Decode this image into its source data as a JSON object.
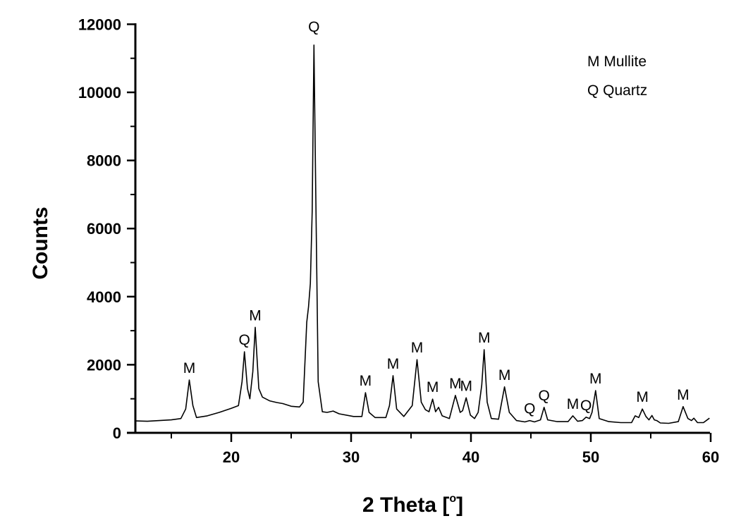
{
  "chart_data": {
    "type": "line",
    "title": "",
    "xlabel": "2 Theta [°]",
    "ylabel": "Counts",
    "xlim": [
      12,
      60
    ],
    "ylim": [
      0,
      12000
    ],
    "grid": false,
    "legend_position": "top-right",
    "xticks": [
      20,
      30,
      40,
      50,
      60
    ],
    "xtick_labels": [
      "20",
      "30",
      "40",
      "50",
      "60"
    ],
    "x_minor_ticks": [
      15,
      25,
      35,
      45,
      55
    ],
    "yticks": [
      0,
      2000,
      4000,
      6000,
      8000,
      10000,
      12000
    ],
    "ytick_labels": [
      "0",
      "2000",
      "4000",
      "6000",
      "8000",
      "10000",
      "12000"
    ],
    "y_minor_ticks": [
      1000,
      3000,
      5000,
      7000,
      9000,
      11000
    ],
    "legend": [
      {
        "symbol": "M",
        "name": "Mullite"
      },
      {
        "symbol": "Q",
        "name": "Quartz"
      }
    ],
    "series": [
      {
        "name": "XRD pattern",
        "x": [
          12.0,
          13.0,
          14.0,
          15.0,
          15.8,
          16.2,
          16.5,
          16.8,
          17.1,
          18.0,
          19.0,
          20.0,
          20.6,
          20.9,
          21.1,
          21.35,
          21.55,
          21.8,
          22.0,
          22.3,
          22.6,
          23.2,
          23.8,
          24.3,
          25.0,
          25.7,
          26.0,
          26.3,
          26.45,
          26.6,
          26.75,
          26.9,
          27.05,
          27.25,
          27.6,
          28.0,
          28.5,
          29.0,
          30.2,
          30.9,
          31.2,
          31.5,
          32.0,
          32.9,
          33.2,
          33.5,
          33.8,
          34.4,
          35.1,
          35.5,
          35.85,
          36.2,
          36.5,
          36.8,
          37.05,
          37.3,
          37.6,
          38.2,
          38.7,
          39.1,
          39.3,
          39.6,
          39.95,
          40.3,
          40.6,
          40.9,
          41.1,
          41.35,
          41.7,
          42.3,
          42.8,
          43.2,
          43.8,
          44.5,
          44.9,
          45.3,
          45.8,
          46.1,
          46.4,
          47.2,
          48.1,
          48.5,
          48.9,
          49.3,
          49.6,
          49.9,
          50.1,
          50.4,
          50.7,
          51.5,
          52.5,
          53.4,
          53.7,
          54.0,
          54.3,
          54.6,
          54.85,
          55.1,
          55.3,
          55.5,
          55.8,
          56.5,
          57.3,
          57.7,
          58.1,
          58.4,
          58.6,
          58.9,
          59.4,
          59.9
        ],
        "y": [
          350,
          340,
          360,
          380,
          420,
          700,
          1550,
          800,
          450,
          500,
          600,
          720,
          800,
          1500,
          2380,
          1300,
          1000,
          1800,
          3100,
          1300,
          1050,
          940,
          890,
          860,
          780,
          760,
          900,
          3250,
          3700,
          4390,
          6500,
          11390,
          7000,
          1500,
          620,
          600,
          640,
          560,
          480,
          480,
          1180,
          600,
          450,
          450,
          800,
          1680,
          700,
          480,
          800,
          2150,
          900,
          680,
          620,
          990,
          620,
          750,
          500,
          420,
          1100,
          600,
          650,
          1030,
          520,
          420,
          600,
          1400,
          2440,
          900,
          420,
          400,
          1350,
          600,
          360,
          320,
          360,
          320,
          380,
          750,
          380,
          330,
          330,
          500,
          340,
          360,
          460,
          420,
          600,
          1240,
          420,
          330,
          300,
          300,
          500,
          450,
          700,
          480,
          380,
          510,
          380,
          360,
          290,
          280,
          330,
          770,
          420,
          360,
          430,
          300,
          300,
          430
        ]
      }
    ],
    "annotations": [
      {
        "text": "M",
        "x": 16.5,
        "y": 1550,
        "phase": "Mullite"
      },
      {
        "text": "Q",
        "x": 21.1,
        "y": 2380,
        "phase": "Quartz"
      },
      {
        "text": "M",
        "x": 22.0,
        "y": 3100,
        "phase": "Mullite"
      },
      {
        "text": "Q",
        "x": 26.9,
        "y": 11390,
        "phase": "Quartz"
      },
      {
        "text": "M",
        "x": 31.2,
        "y": 1180,
        "phase": "Mullite"
      },
      {
        "text": "M",
        "x": 33.5,
        "y": 1680,
        "phase": "Mullite"
      },
      {
        "text": "M",
        "x": 35.5,
        "y": 2150,
        "phase": "Mullite"
      },
      {
        "text": "M",
        "x": 36.8,
        "y": 990,
        "phase": "Mullite"
      },
      {
        "text": "M",
        "x": 38.7,
        "y": 1100,
        "phase": "Mullite"
      },
      {
        "text": "M",
        "x": 39.6,
        "y": 1030,
        "phase": "Mullite"
      },
      {
        "text": "M",
        "x": 41.1,
        "y": 2440,
        "phase": "Mullite"
      },
      {
        "text": "M",
        "x": 42.8,
        "y": 1350,
        "phase": "Mullite"
      },
      {
        "text": "Q",
        "x": 44.9,
        "y": 360,
        "phase": "Quartz"
      },
      {
        "text": "Q",
        "x": 46.1,
        "y": 750,
        "phase": "Quartz"
      },
      {
        "text": "M",
        "x": 48.5,
        "y": 500,
        "phase": "Mullite"
      },
      {
        "text": "Q",
        "x": 49.6,
        "y": 460,
        "phase": "Quartz"
      },
      {
        "text": "M",
        "x": 50.4,
        "y": 1240,
        "phase": "Mullite"
      },
      {
        "text": "M",
        "x": 54.3,
        "y": 700,
        "phase": "Mullite"
      },
      {
        "text": "M",
        "x": 57.7,
        "y": 770,
        "phase": "Mullite"
      }
    ]
  },
  "labels": {
    "xlabel_main": "2 Theta [",
    "xlabel_degree": "o",
    "xlabel_close": "]",
    "ylabel": "Counts",
    "legend_mullite": "M Mullite",
    "legend_quartz": "Q Quartz"
  },
  "colors": {
    "line": "#000000",
    "axis": "#000000",
    "background": "#ffffff"
  }
}
